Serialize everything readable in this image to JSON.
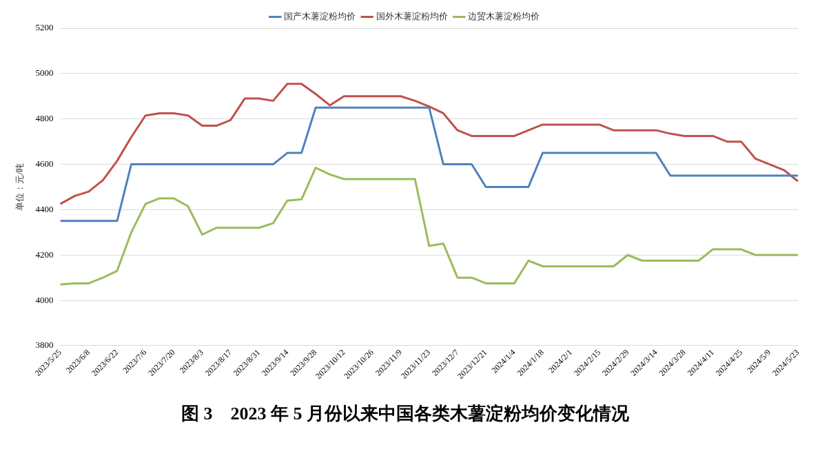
{
  "chart_data": {
    "type": "line",
    "title": "图 3　2023 年 5 月份以来中国各类木薯淀粉均价变化情况",
    "ylabel": "单位：元/吨",
    "categories": [
      "2023/5/25",
      null,
      "2023/6/8",
      null,
      "2023/6/22",
      null,
      "2023/7/6",
      null,
      "2023/7/20",
      null,
      "2023/8/3",
      null,
      "2023/8/17",
      null,
      "2023/8/31",
      null,
      "2023/9/14",
      null,
      "2023/9/28",
      null,
      "2023/10/12",
      null,
      "2023/10/26",
      null,
      "2023/11/9",
      null,
      "2023/11/23",
      null,
      "2023/12/7",
      null,
      "2023/12/21",
      null,
      "2024/1/4",
      null,
      "2024/1/18",
      null,
      "2024/2/1",
      null,
      "2024/2/15",
      null,
      "2024/2/29",
      null,
      "2024/3/14",
      null,
      "2024/3/28",
      null,
      "2024/4/11",
      null,
      "2024/4/25",
      null,
      "2024/5/9",
      null,
      "2024/5/23"
    ],
    "series": [
      {
        "name": "国产木薯淀粉均价",
        "color": "#4f81bd",
        "values": [
          4350,
          4350,
          4350,
          4350,
          4350,
          4600,
          4600,
          4600,
          4600,
          4600,
          4600,
          4600,
          4600,
          4600,
          4600,
          4600,
          4650,
          4650,
          4850,
          4850,
          4850,
          4850,
          4850,
          4850,
          4850,
          4850,
          4850,
          4600,
          4600,
          4600,
          4500,
          4500,
          4500,
          4500,
          4650,
          4650,
          4650,
          4650,
          4650,
          4650,
          4650,
          4650,
          4650,
          4550,
          4550,
          4550,
          4550,
          4550,
          4550,
          4550,
          4550,
          4550,
          4550
        ]
      },
      {
        "name": "国外木薯淀粉均价",
        "color": "#c0504d",
        "values": [
          4425,
          4460,
          4480,
          4530,
          4615,
          4720,
          4815,
          4825,
          4825,
          4815,
          4770,
          4770,
          4795,
          4890,
          4890,
          4880,
          4955,
          4955,
          4910,
          4860,
          4900,
          4900,
          4900,
          4900,
          4900,
          4880,
          4855,
          4825,
          4750,
          4725,
          4725,
          4725,
          4725,
          4750,
          4775,
          4775,
          4775,
          4775,
          4775,
          4750,
          4750,
          4750,
          4750,
          4735,
          4725,
          4725,
          4725,
          4700,
          4700,
          4625,
          4600,
          4575,
          4525
        ]
      },
      {
        "name": "边贸木薯淀粉均价",
        "color": "#9bbb59",
        "values": [
          4070,
          4075,
          4075,
          4100,
          4130,
          4300,
          4425,
          4450,
          4450,
          4415,
          4290,
          4320,
          4320,
          4320,
          4320,
          4340,
          4440,
          4445,
          4585,
          4555,
          4535,
          4535,
          4535,
          4535,
          4535,
          4535,
          4240,
          4250,
          4100,
          4100,
          4075,
          4075,
          4075,
          4175,
          4150,
          4150,
          4150,
          4150,
          4150,
          4150,
          4200,
          4175,
          4175,
          4175,
          4175,
          4175,
          4225,
          4225,
          4225,
          4200,
          4200,
          4200,
          4200
        ]
      }
    ],
    "ylim": [
      3800,
      5200
    ],
    "yticks": [
      3800,
      4000,
      4200,
      4400,
      4600,
      4800,
      5000,
      5200
    ],
    "grid": "y",
    "legend": "top",
    "marker": "none",
    "line_style": "solid"
  }
}
